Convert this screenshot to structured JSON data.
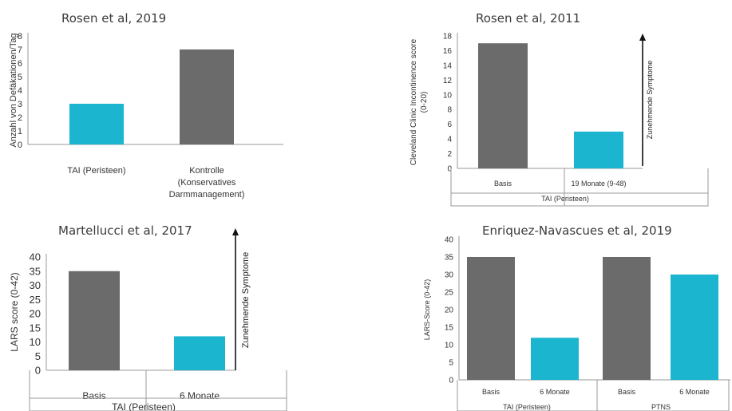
{
  "chart_data": [
    {
      "type": "bar",
      "title": "Rosen et al, 2019",
      "ylabel": "Anzahl von Defäkationen/Tag",
      "ylim": [
        0,
        8
      ],
      "yticks": [
        0,
        1,
        2,
        3,
        4,
        5,
        6,
        7,
        8
      ],
      "categories": [
        [
          "TAI (Peristeen)"
        ],
        [
          "Kontrolle",
          "(Konservatives",
          "Darmmanagement)"
        ]
      ],
      "values": [
        3,
        7
      ],
      "colors": [
        "#1bb5cf",
        "#6b6b6b"
      ]
    },
    {
      "type": "bar",
      "title": "Rosen et al, 2011",
      "ylabel_lines": [
        "Cleveland Clinic Incontinence score",
        "(0-20)"
      ],
      "ylim": [
        0,
        18
      ],
      "yticks": [
        0,
        2,
        4,
        6,
        8,
        10,
        12,
        14,
        16,
        18
      ],
      "categories": [
        "Basis",
        "19 Monate (9-48)"
      ],
      "group_labels": [
        "TAI (Peristeen)"
      ],
      "values": [
        17,
        5
      ],
      "colors": [
        "#6b6b6b",
        "#1bb5cf"
      ],
      "arrow_label": "Zunehmende Symptome"
    },
    {
      "type": "bar",
      "title": "Martellucci et al, 2017",
      "ylabel": "LARS score (0-42)",
      "ylim": [
        0,
        40
      ],
      "yticks": [
        0,
        5,
        10,
        15,
        20,
        25,
        30,
        35,
        40
      ],
      "categories": [
        "Basis",
        "6 Monate"
      ],
      "group_labels": [
        "TAI (Peristeen)"
      ],
      "values": [
        35,
        12
      ],
      "colors": [
        "#6b6b6b",
        "#1bb5cf"
      ],
      "arrow_label": "Zunehmende Symptome"
    },
    {
      "type": "bar",
      "title": "Enriquez-Navascues et al, 2019",
      "ylabel": "LARS-Score (0-42)",
      "ylim": [
        0,
        40
      ],
      "yticks": [
        0,
        5,
        10,
        15,
        20,
        25,
        30,
        35,
        40
      ],
      "categories": [
        "Basis",
        "6 Monate",
        "Basis",
        "6 Monate"
      ],
      "group_labels": [
        "TAI (Peristeen)",
        "PTNS"
      ],
      "values": [
        35,
        12,
        35,
        30
      ],
      "colors": [
        "#6b6b6b",
        "#1bb5cf",
        "#6b6b6b",
        "#1bb5cf"
      ]
    }
  ]
}
